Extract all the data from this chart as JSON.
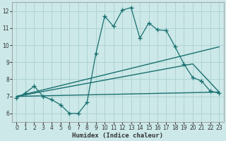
{
  "title": "",
  "xlabel": "Humidex (Indice chaleur)",
  "ylabel": "",
  "xlim": [
    -0.5,
    23.5
  ],
  "ylim": [
    5.5,
    12.5
  ],
  "yticks": [
    6,
    7,
    8,
    9,
    10,
    11,
    12
  ],
  "xticks": [
    0,
    1,
    2,
    3,
    4,
    5,
    6,
    7,
    8,
    9,
    10,
    11,
    12,
    13,
    14,
    15,
    16,
    17,
    18,
    19,
    20,
    21,
    22,
    23
  ],
  "bg_color": "#cce8e8",
  "line_color": "#1a7070",
  "grid_color": "#b0d4d4",
  "series1_x": [
    0,
    1,
    2,
    3,
    4,
    5,
    6,
    7,
    8,
    9,
    10,
    11,
    12,
    13,
    14,
    15,
    16,
    17,
    18,
    19,
    20,
    21,
    22,
    23
  ],
  "series1_y": [
    6.9,
    7.2,
    7.6,
    7.0,
    6.8,
    6.5,
    6.0,
    6.0,
    6.65,
    9.5,
    11.7,
    11.1,
    12.05,
    12.2,
    10.4,
    11.3,
    10.9,
    10.85,
    9.9,
    8.9,
    8.1,
    7.9,
    7.3,
    7.2
  ],
  "series2_x": [
    0,
    23
  ],
  "series2_y": [
    7.0,
    9.9
  ],
  "series3_x": [
    0,
    20,
    23
  ],
  "series3_y": [
    7.0,
    8.9,
    7.25
  ],
  "series4_x": [
    0,
    23
  ],
  "series4_y": [
    7.0,
    7.25
  ]
}
